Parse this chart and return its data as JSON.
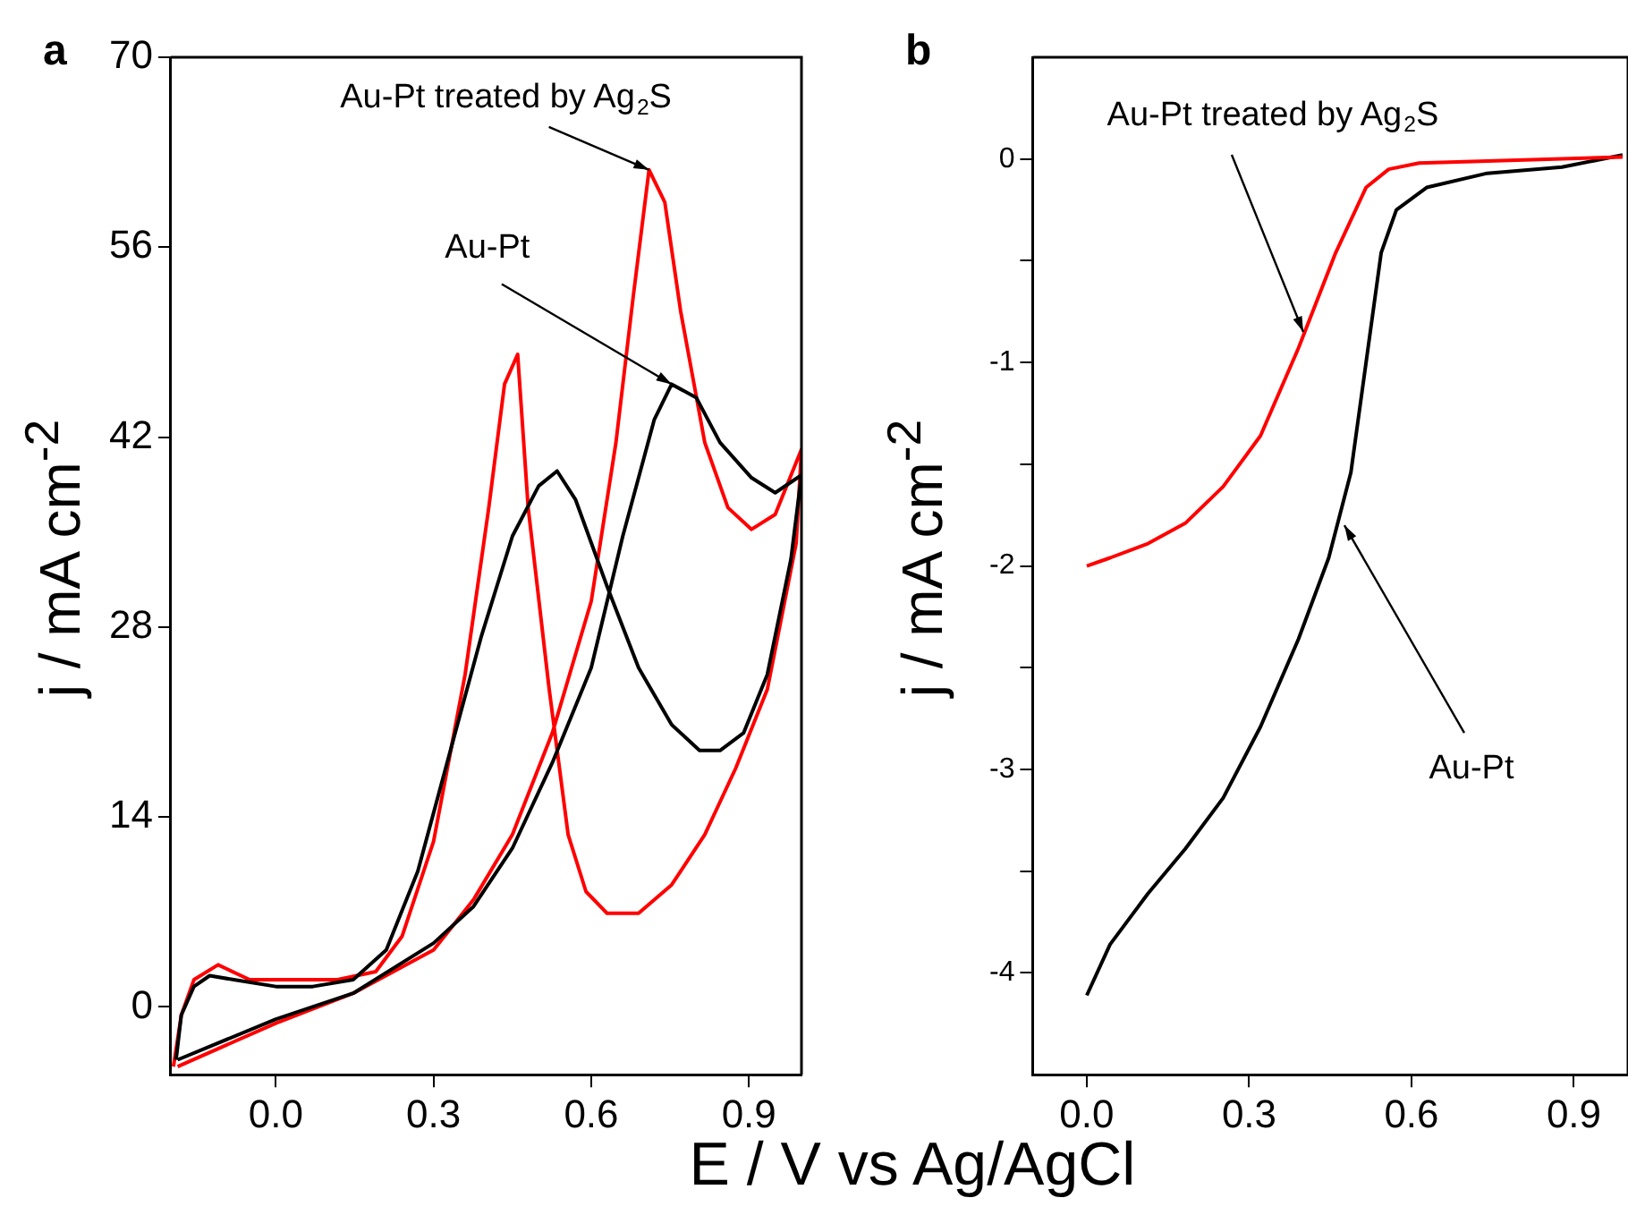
{
  "chart_data": [
    {
      "type": "line",
      "title": "a",
      "xlabel": "E / V vs Ag/AgCl",
      "ylabel": "j / mA cm$^{-2}$",
      "xlim": [
        -0.2,
        1.0
      ],
      "ylim": [
        -5,
        70
      ],
      "xticks": [
        {
          "value": 0,
          "label": "0.0"
        },
        0.3,
        0.6,
        0.9
      ],
      "yticks": [
        0,
        14,
        28,
        42,
        56,
        70
      ],
      "grid": false,
      "legend": false,
      "series": [
        {
          "color": "#000000",
          "x": [
            -0.187,
            0,
            0.147,
            0.3,
            0.376,
            0.45,
            0.526,
            0.6,
            0.66,
            0.72,
            0.753,
            0.8,
            0.845,
            0.905,
            0.95,
            1.0,
            0.98,
            0.935,
            0.89,
            0.845,
            0.806,
            0.753,
            0.69,
            0.63,
            0.57,
            0.535,
            0.5,
            0.45,
            0.39,
            0.33,
            0.27,
            0.21,
            0.147,
            0.07,
            0,
            -0.08,
            -0.126,
            -0.156,
            -0.18,
            -0.19
          ],
          "values": [
            -3.9,
            -0.9,
            1.0,
            4.7,
            7.4,
            11.7,
            18,
            25,
            34.7,
            43.3,
            45.9,
            44.9,
            41.6,
            39,
            37.9,
            39.2,
            33,
            24.5,
            20.2,
            18.9,
            18.9,
            20.8,
            25,
            31,
            37.4,
            39.5,
            38.4,
            34.7,
            27.2,
            18.6,
            10,
            4.2,
            2,
            1.5,
            1.5,
            2,
            2.3,
            1.5,
            -0.6,
            -3.9
          ]
        },
        {
          "color": "#ff0000",
          "x": [
            -0.187,
            0,
            0.147,
            0.3,
            0.376,
            0.45,
            0.526,
            0.6,
            0.647,
            0.68,
            0.71,
            0.74,
            0.77,
            0.816,
            0.86,
            0.905,
            0.95,
            1.0,
            0.99,
            0.935,
            0.875,
            0.816,
            0.753,
            0.69,
            0.63,
            0.59,
            0.556,
            0.52,
            0.48,
            0.46,
            0.435,
            0.405,
            0.36,
            0.3,
            0.24,
            0.19,
            0.117,
            0.04,
            -0.05,
            -0.11,
            -0.156,
            -0.18,
            -0.195
          ],
          "values": [
            -4.4,
            -1.2,
            1,
            4.2,
            7.9,
            12.7,
            20.2,
            29.9,
            41.6,
            52.4,
            61.7,
            59.3,
            51.3,
            41.6,
            36.8,
            35.2,
            36.3,
            41.1,
            34.2,
            23.4,
            17.6,
            12.7,
            9,
            6.9,
            6.9,
            8.5,
            12.7,
            23.4,
            36.8,
            48.1,
            45.9,
            36.8,
            24.5,
            12.2,
            5.2,
            2.6,
            2,
            2,
            2,
            3.1,
            2,
            -0.6,
            -4.4
          ]
        }
      ],
      "annotations": [
        {
          "text": "Au-Pt treated by Ag$_{2}$S",
          "x": 0.71,
          "y": 61.7
        },
        {
          "text": "Au-Pt",
          "x": 0.753,
          "y": 45.9
        }
      ]
    },
    {
      "type": "line",
      "title": "b",
      "ylabel": "j / mA cm$^{-2}$",
      "xlim": [
        -0.1,
        1.0
      ],
      "ylim": [
        -4.5,
        0.5
      ],
      "xticks": [
        {
          "value": 0,
          "label": "0.0"
        },
        0.3,
        0.6,
        0.9
      ],
      "yticks": [
        -4,
        {
          "value": -3.5,
          "label": null
        },
        -3,
        {
          "value": -2.5,
          "label": null
        },
        -2,
        {
          "value": -1.5,
          "label": null
        },
        -1,
        {
          "value": -0.5,
          "label": null
        },
        0
      ],
      "grid": false,
      "legend": false,
      "series": [
        {
          "color": "#ff0000",
          "x": [
            0,
            0.043,
            0.113,
            0.182,
            0.252,
            0.321,
            0.391,
            0.46,
            0.516,
            0.558,
            0.614,
            0.74,
            0.99
          ],
          "values": [
            -2.0,
            -1.96,
            -1.89,
            -1.79,
            -1.61,
            -1.36,
            -0.93,
            -0.46,
            -0.14,
            -0.05,
            -0.02,
            -0.01,
            0.01
          ]
        },
        {
          "color": "#000000",
          "x": [
            0,
            0.043,
            0.113,
            0.182,
            0.252,
            0.321,
            0.391,
            0.447,
            0.488,
            0.516,
            0.544,
            0.572,
            0.628,
            0.74,
            0.878,
            0.99
          ],
          "values": [
            -4.11,
            -3.86,
            -3.61,
            -3.39,
            -3.14,
            -2.79,
            -2.36,
            -1.96,
            -1.54,
            -1.0,
            -0.46,
            -0.25,
            -0.14,
            -0.07,
            -0.04,
            0.02
          ]
        }
      ],
      "annotations": [
        {
          "text": "Au-Pt treated by Ag$_{2}$S",
          "x": 0.4,
          "y": -0.85
        },
        {
          "text": "Au-Pt",
          "x": 0.476,
          "y": -1.8
        }
      ]
    }
  ]
}
